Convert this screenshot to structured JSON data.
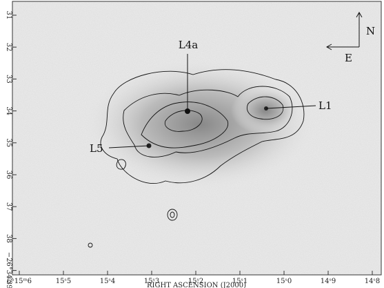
{
  "x_axis": {
    "title": "RIGHT ASCENSION (J2000)",
    "ticks": [
      "6ʰ15ᵐ6",
      "15ˢ5",
      "15ˢ4",
      "15ˢ3",
      "15ˢ2",
      "15ˢ1",
      "15ˢ0",
      "14ˢ9",
      "14ˢ8"
    ]
  },
  "y_axis": {
    "ticks": [
      "31",
      "32",
      "33",
      "34",
      "35",
      "36",
      "37",
      "38",
      "−26°34′39"
    ]
  },
  "labels": {
    "l4a": "L4a",
    "l1": "L1",
    "l5": "L5"
  },
  "compass": {
    "north": "N",
    "east": "E"
  }
}
